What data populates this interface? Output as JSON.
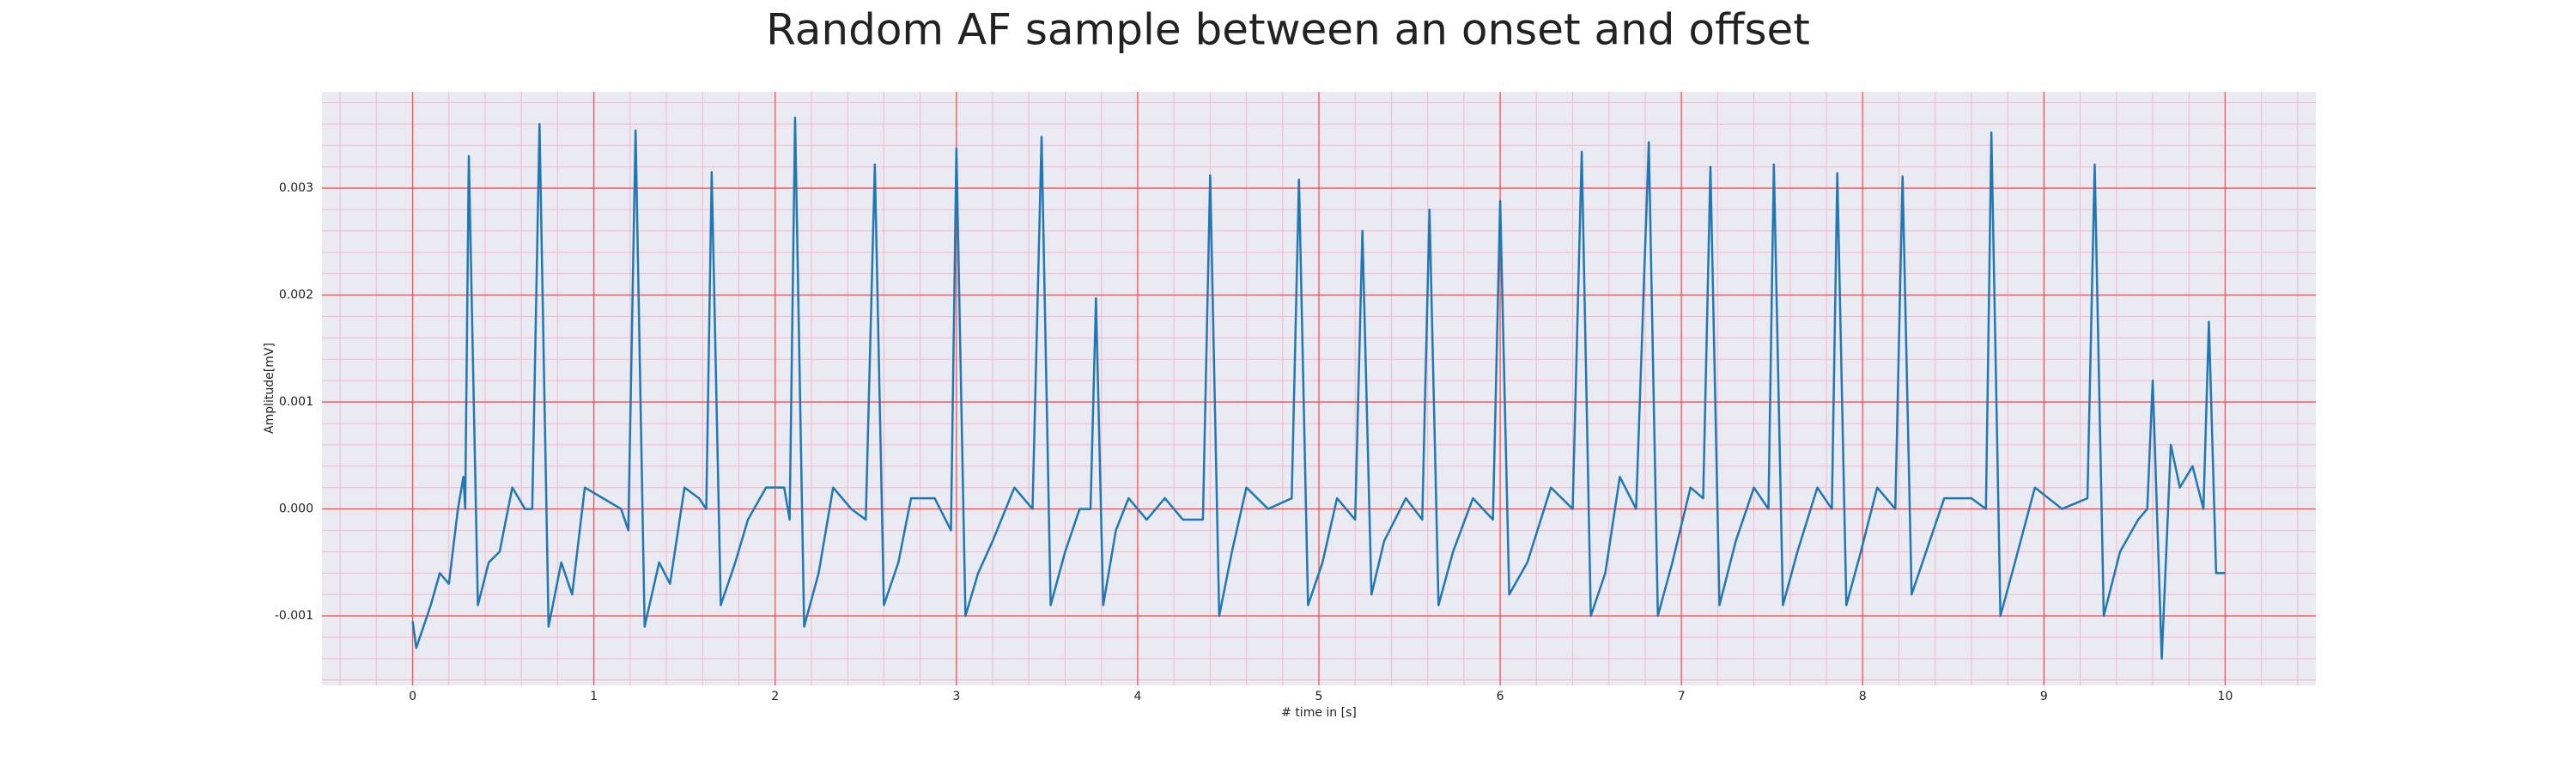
{
  "chart_data": {
    "type": "line",
    "title": "Random AF sample between an onset and offset",
    "xlabel": "# time in [s]",
    "ylabel": "Amplitude[mV]",
    "x": [
      0,
      0.02,
      0.1,
      0.15,
      0.2,
      0.25,
      0.28,
      0.29,
      0.31,
      0.36,
      0.42,
      0.48,
      0.55,
      0.62,
      0.66,
      0.7,
      0.75,
      0.82,
      0.88,
      0.95,
      1.05,
      1.15,
      1.19,
      1.23,
      1.28,
      1.36,
      1.42,
      1.5,
      1.58,
      1.62,
      1.65,
      1.7,
      1.78,
      1.85,
      1.95,
      2.05,
      2.08,
      2.11,
      2.16,
      2.24,
      2.32,
      2.42,
      2.5,
      2.55,
      2.6,
      2.68,
      2.75,
      2.88,
      2.97,
      3.0,
      3.05,
      3.12,
      3.2,
      3.32,
      3.42,
      3.47,
      3.52,
      3.6,
      3.68,
      3.74,
      3.77,
      3.81,
      3.88,
      3.95,
      4.05,
      4.15,
      4.25,
      4.36,
      4.4,
      4.45,
      4.52,
      4.6,
      4.72,
      4.85,
      4.89,
      4.94,
      5.02,
      5.1,
      5.2,
      5.24,
      5.29,
      5.36,
      5.48,
      5.57,
      5.61,
      5.66,
      5.74,
      5.85,
      5.96,
      6.0,
      6.05,
      6.15,
      6.28,
      6.4,
      6.45,
      6.5,
      6.58,
      6.66,
      6.75,
      6.82,
      6.87,
      6.95,
      7.05,
      7.12,
      7.16,
      7.21,
      7.3,
      7.4,
      7.48,
      7.51,
      7.56,
      7.64,
      7.75,
      7.83,
      7.86,
      7.91,
      7.99,
      8.08,
      8.18,
      8.22,
      8.27,
      8.35,
      8.45,
      8.6,
      8.68,
      8.71,
      8.76,
      8.84,
      8.95,
      9.1,
      9.24,
      9.28,
      9.33,
      9.42,
      9.52,
      9.57,
      9.6,
      9.65,
      9.7,
      9.75,
      9.82,
      9.88,
      9.91,
      9.95,
      10.0
    ],
    "series": [
      {
        "name": "Amplitude",
        "color": "#1f77b4",
        "values": [
          -0.00105,
          -0.0013,
          -0.0009,
          -0.0006,
          -0.0007,
          0.0,
          0.0003,
          0.0,
          0.0033,
          -0.0009,
          -0.0005,
          -0.0004,
          0.0002,
          0.0,
          0.0,
          0.0036,
          -0.0011,
          -0.0005,
          -0.0008,
          0.0002,
          0.0001,
          0.0,
          -0.0002,
          0.00354,
          -0.0011,
          -0.0005,
          -0.0007,
          0.0002,
          0.0001,
          0.0,
          0.00315,
          -0.0009,
          -0.0005,
          -0.0001,
          0.0002,
          0.0002,
          -0.0001,
          0.00366,
          -0.0011,
          -0.0006,
          0.0002,
          0.0,
          -0.0001,
          0.00322,
          -0.0009,
          -0.0005,
          0.0001,
          0.0001,
          -0.0002,
          0.00337,
          -0.001,
          -0.0006,
          -0.0003,
          0.0002,
          0.0,
          0.00348,
          -0.0009,
          -0.0004,
          0.0,
          0.0,
          0.00197,
          -0.0009,
          -0.0002,
          0.0001,
          -0.0001,
          0.0001,
          -0.0001,
          -0.0001,
          0.00312,
          -0.001,
          -0.0004,
          0.0002,
          0.0,
          0.0001,
          0.00308,
          -0.0009,
          -0.0005,
          0.0001,
          -0.0001,
          0.0026,
          -0.0008,
          -0.0003,
          0.0001,
          -0.0001,
          0.0028,
          -0.0009,
          -0.0004,
          0.0001,
          -0.0001,
          0.00288,
          -0.0008,
          -0.0005,
          0.0002,
          0.0,
          0.00334,
          -0.001,
          -0.0006,
          0.0003,
          0.0,
          0.00343,
          -0.001,
          -0.0005,
          0.0002,
          0.0001,
          0.0032,
          -0.0009,
          -0.0003,
          0.0002,
          0.0,
          0.00322,
          -0.0009,
          -0.0004,
          0.0002,
          0.0,
          0.00314,
          -0.0009,
          -0.0004,
          0.0002,
          0.0,
          0.00311,
          -0.0008,
          -0.0004,
          0.0001,
          0.0001,
          0.0,
          0.00352,
          -0.001,
          -0.0005,
          0.0002,
          0.0,
          0.0001,
          0.00322,
          -0.001,
          -0.0004,
          -0.0001,
          0.0,
          0.0012,
          -0.0014,
          0.0006,
          0.0002,
          0.0004,
          0.0,
          0.00175,
          -0.0006,
          -0.0006
        ]
      }
    ],
    "xlim": [
      -0.5,
      10.5
    ],
    "ylim": [
      -0.00165,
      0.0039
    ],
    "xticks": [
      0,
      1,
      2,
      3,
      4,
      5,
      6,
      7,
      8,
      9,
      10
    ],
    "yticks": [
      {
        "value": -0.001,
        "label": "-0.001"
      },
      {
        "value": 0,
        "label": "0.000"
      },
      {
        "value": 0.001,
        "label": "0.001"
      },
      {
        "value": 0.002,
        "label": "0.002"
      },
      {
        "value": 0.003,
        "label": "0.003"
      }
    ],
    "grid": true,
    "grid_color": "#ff4d4d",
    "minor_grid": 5,
    "minor_grid_color": "#f5b8c8",
    "background": "#eaeaf2"
  }
}
